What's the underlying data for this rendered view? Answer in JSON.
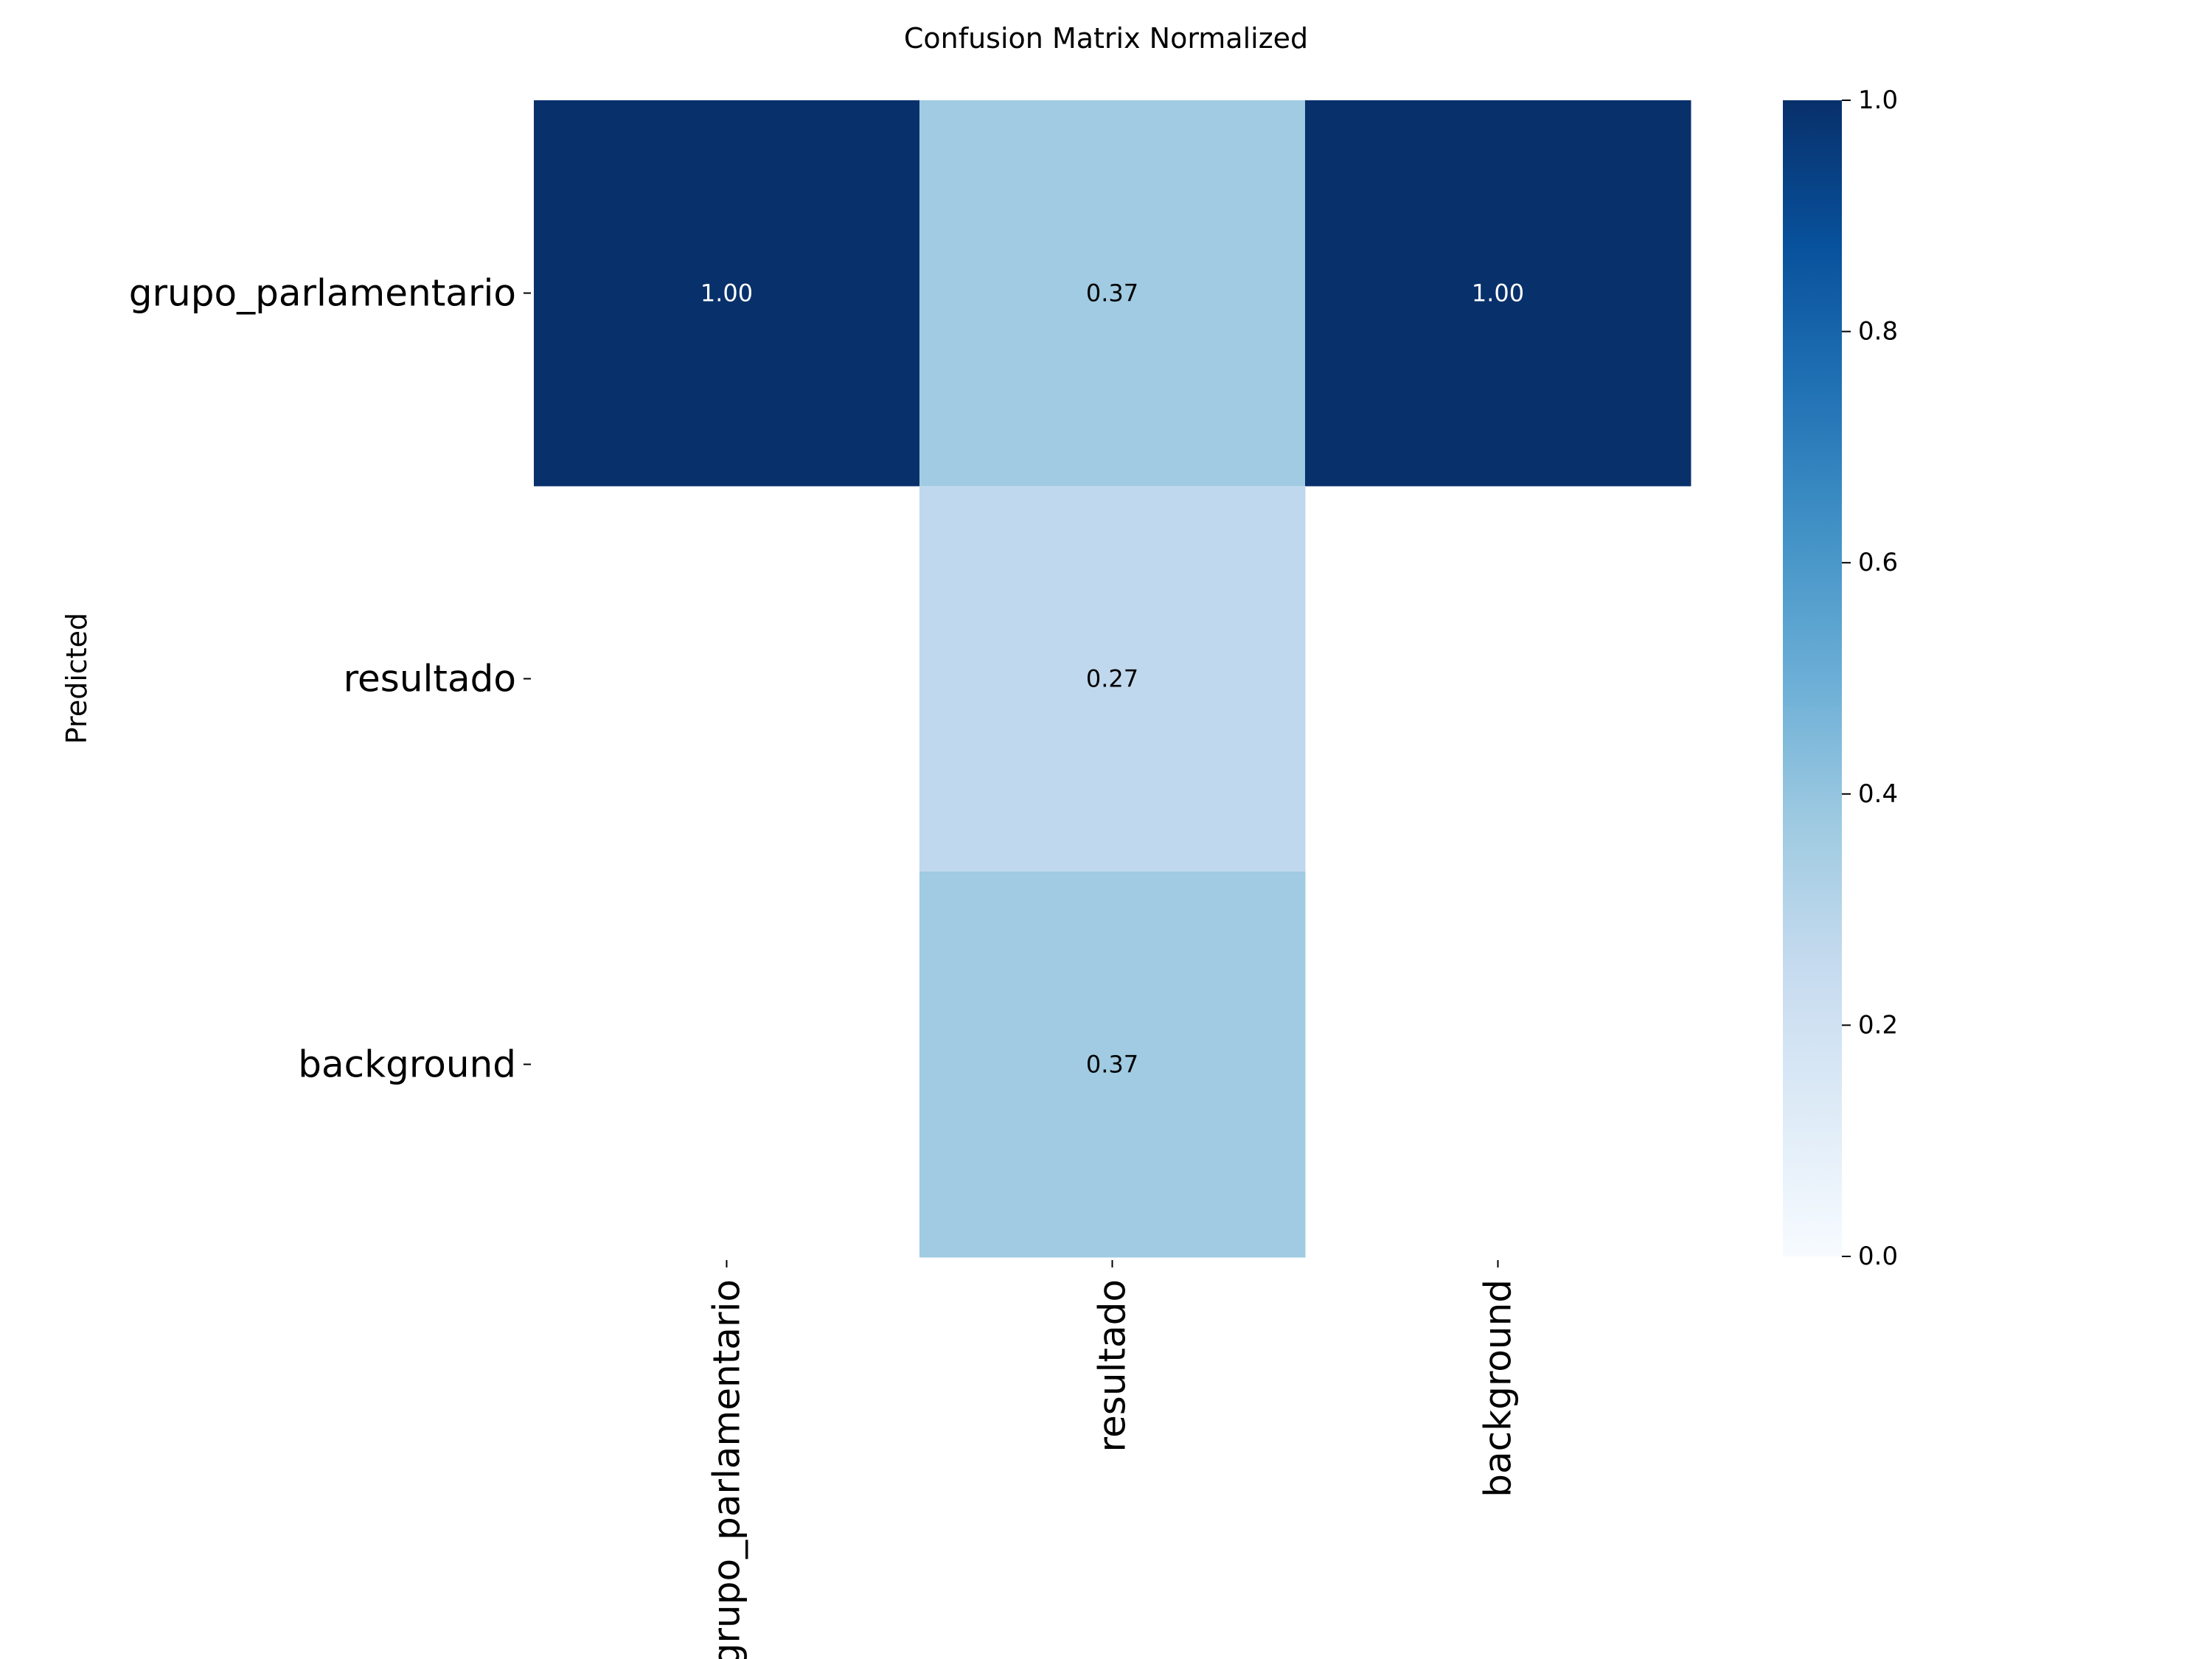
{
  "chart_data": {
    "type": "heatmap",
    "title": "Confusion Matrix Normalized",
    "xlabel": "",
    "ylabel": "Predicted",
    "x_categories": [
      "grupo_parlamentario",
      "resultado",
      "background"
    ],
    "y_categories": [
      "grupo_parlamentario",
      "resultado",
      "background"
    ],
    "values": [
      [
        1.0,
        0.37,
        1.0
      ],
      [
        null,
        0.27,
        null
      ],
      [
        null,
        0.37,
        null
      ]
    ],
    "value_format": "0.00",
    "colormap": "Blues",
    "color_stops": [
      "#f7fbff",
      "#deebf7",
      "#c6dbef",
      "#9ecae1",
      "#6baed6",
      "#4292c6",
      "#2171b5",
      "#08519c",
      "#08306b"
    ],
    "zlim": [
      0.0,
      1.0
    ],
    "colorbar_ticks": [
      "0.0",
      "0.2",
      "0.4",
      "0.6",
      "0.8",
      "1.0"
    ],
    "legend": "right"
  }
}
